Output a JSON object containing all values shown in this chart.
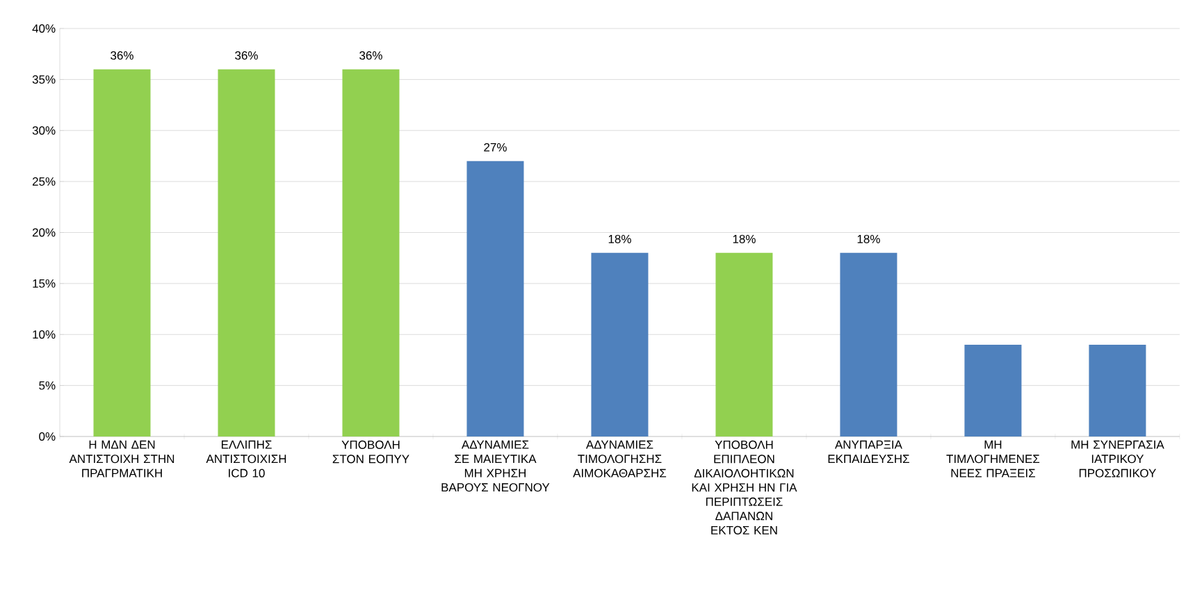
{
  "chart_data": {
    "type": "bar",
    "categories": [
      "Η ΜΔΝ ΔΕΝ ΑΝΤΙΣΤΟΙΧΗ ΣΤΗΝ ΠΡΑΓΡΜΑΤΙΚΗ",
      "ΕΛΛΙΠΗΣ ΑΝΤΙΣΤΟΙΧΙΣΗ ICD 10",
      "ΥΠΟΒΟΛΗ ΣΤΟΝ ΕΟΠΥΥ",
      "ΑΔΥΝΑΜΙΕΣ ΣΕ ΜΑΙΕΥΤΙΚΑ ΜΗ ΧΡΗΣΗ ΒΑΡΟΥΣ ΝΕΟΓΝΟΥ",
      "ΑΔΥΝΑΜΙΕΣ ΤΙΜΟΛΟΓΗΣΗΣ ΑΙΜΟΚΑΘΑΡΣΗΣ",
      "ΥΠΟΒΟΛΗ ΕΠΙΠΛΕΟΝ ΔΙΚΑΙΟΛΟΗΤΙΚΩΝ ΚΑΙ ΧΡΗΣΗ ΗΝ ΓΙΑ ΠΕΡΙΠΤΩΣΕΙΣ ΔΑΠΑΝΩΝ ΕΚΤΟΣ ΚΕΝ",
      "ΑΝΥΠΑΡΞΙΑ ΕΚΠΑΙΔΕΥΣΗΣ",
      "ΜΗ ΤΙΜΛΟΓΗΜΕΝΕΣ ΝΕΕΣ ΠΡΑΞΕΙΣ",
      "ΜΗ ΣΥΝΕΡΓΑΣΙΑ ΙΑΤΡΙΚΟΥ ΠΡΟΣΩΠΙΚΟΥ"
    ],
    "values": [
      36,
      36,
      36,
      27,
      18,
      18,
      18,
      9,
      9
    ],
    "value_labels": [
      "36%",
      "36%",
      "36%",
      "27%",
      "18%",
      "18%",
      "18%",
      null,
      null
    ],
    "colors": [
      "#92d050",
      "#92d050",
      "#92d050",
      "#4f81bd",
      "#4f81bd",
      "#92d050",
      "#4f81bd",
      "#4f81bd",
      "#4f81bd"
    ],
    "ylim": [
      0,
      40
    ],
    "yticks": [
      {
        "value": 0,
        "label": "0%"
      },
      {
        "value": 5,
        "label": "5%"
      },
      {
        "value": 10,
        "label": "10%"
      },
      {
        "value": 15,
        "label": "15%"
      },
      {
        "value": 20,
        "label": "20%"
      },
      {
        "value": 25,
        "label": "25%"
      },
      {
        "value": 30,
        "label": "30%"
      },
      {
        "value": 35,
        "label": "35%"
      },
      {
        "value": 40,
        "label": "40%"
      }
    ],
    "grid": "y"
  }
}
